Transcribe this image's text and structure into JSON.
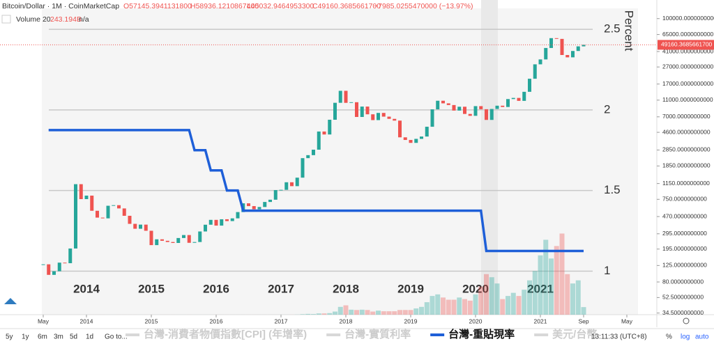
{
  "header": {
    "symbol": "Bitcoin/Dollar · 1M · CoinMarketCap",
    "open": "O57145.3941131800",
    "high": "H58936.1210867400",
    "low": "L45032.9464953300",
    "close": "C49160.3685661700",
    "change": "−7985.0255470000 (−13.97%)",
    "volume_name": "Volume 20",
    "volume_value": "243.194B",
    "volume_ma": "n/a",
    "last_price": "49160.3685661700"
  },
  "chart_data": {
    "type": "candlestick",
    "log_y": true,
    "up_color": "#26a69a",
    "down_color": "#ef5350",
    "rate_color": "#1e5fd8",
    "x": [
      "2013-05",
      "2013-06",
      "2013-07",
      "2013-08",
      "2013-09",
      "2013-10",
      "2013-11",
      "2013-12",
      "2014-01",
      "2014-02",
      "2014-03",
      "2014-04",
      "2014-05",
      "2014-06",
      "2014-07",
      "2014-08",
      "2014-09",
      "2014-10",
      "2014-11",
      "2014-12",
      "2015-01",
      "2015-02",
      "2015-03",
      "2015-04",
      "2015-05",
      "2015-06",
      "2015-07",
      "2015-08",
      "2015-09",
      "2015-10",
      "2015-11",
      "2015-12",
      "2016-01",
      "2016-02",
      "2016-03",
      "2016-04",
      "2016-05",
      "2016-06",
      "2016-07",
      "2016-08",
      "2016-09",
      "2016-10",
      "2016-11",
      "2016-12",
      "2017-01",
      "2017-02",
      "2017-03",
      "2017-04",
      "2017-05",
      "2017-06",
      "2017-07",
      "2017-08",
      "2017-09",
      "2017-10",
      "2017-11",
      "2017-12",
      "2018-01",
      "2018-02",
      "2018-03",
      "2018-04",
      "2018-05",
      "2018-06",
      "2018-07",
      "2018-08",
      "2018-09",
      "2018-10",
      "2018-11",
      "2018-12",
      "2019-01",
      "2019-02",
      "2019-03",
      "2019-04",
      "2019-05",
      "2019-06",
      "2019-07",
      "2019-08",
      "2019-09",
      "2019-10",
      "2019-11",
      "2019-12",
      "2020-01",
      "2020-02",
      "2020-03",
      "2020-04",
      "2020-05",
      "2020-06",
      "2020-07",
      "2020-08",
      "2020-09",
      "2020-10",
      "2020-11",
      "2020-12",
      "2021-01",
      "2021-02",
      "2021-03",
      "2021-04",
      "2021-05",
      "2021-06",
      "2021-07",
      "2021-08",
      "2021-09"
    ],
    "close": [
      129,
      97,
      107,
      135,
      133,
      198,
      1130,
      754,
      829,
      550,
      457,
      448,
      630,
      640,
      586,
      480,
      386,
      338,
      378,
      320,
      217,
      254,
      244,
      236,
      230,
      263,
      285,
      231,
      236,
      314,
      377,
      430,
      368,
      437,
      416,
      448,
      531,
      673,
      624,
      573,
      609,
      698,
      742,
      963,
      970,
      1190,
      1071,
      1348,
      2286,
      2480,
      2875,
      4703,
      4338,
      6468,
      10233,
      14156,
      10221,
      10397,
      6973,
      9240,
      7494,
      6404,
      7780,
      7037,
      6625,
      6317,
      4017,
      3742,
      3457,
      3854,
      4105,
      5350,
      8574,
      10817,
      10085,
      9630,
      8293,
      9199,
      7569,
      7193,
      9350,
      8599,
      6438,
      8658,
      9461,
      9137,
      11323,
      11680,
      10784,
      13781,
      19625,
      29001,
      33114,
      45137,
      58918,
      57750,
      37332,
      35041,
      41626,
      47166,
      49160.36856617
    ],
    "volume": [
      0.1,
      0.1,
      0.1,
      0.1,
      0.1,
      0.1,
      0.1,
      0.1,
      0.2,
      0.2,
      0.2,
      0.2,
      0.2,
      0.2,
      0.2,
      0.2,
      0.2,
      0.2,
      0.2,
      0.2,
      0.2,
      0.2,
      0.2,
      0.2,
      0.2,
      0.2,
      0.2,
      0.2,
      0.2,
      0.2,
      0.2,
      0.2,
      0.3,
      0.3,
      0.3,
      0.3,
      0.3,
      0.3,
      0.3,
      0.3,
      0.3,
      0.3,
      0.3,
      0.3,
      1,
      1,
      2,
      4,
      15,
      25,
      20,
      40,
      40,
      50,
      100,
      250,
      300,
      160,
      150,
      160,
      150,
      100,
      130,
      110,
      110,
      110,
      150,
      150,
      150,
      200,
      250,
      400,
      600,
      650,
      550,
      480,
      480,
      550,
      500,
      450,
      650,
      900,
      1300,
      1200,
      1000,
      500,
      600,
      700,
      600,
      800,
      1100,
      1400,
      1900,
      2400,
      1800,
      2200,
      2600,
      1300,
      1000,
      1100,
      243.194
    ],
    "rate": [
      null,
      1.875,
      1.875,
      1.875,
      1.875,
      1.875,
      1.875,
      1.875,
      1.875,
      1.875,
      1.875,
      1.875,
      1.875,
      1.875,
      1.875,
      1.875,
      1.875,
      1.875,
      1.875,
      1.875,
      1.875,
      1.875,
      1.875,
      1.875,
      1.875,
      1.875,
      1.875,
      1.875,
      1.75,
      1.75,
      1.75,
      1.625,
      1.625,
      1.625,
      1.5,
      1.5,
      1.5,
      1.375,
      1.375,
      1.375,
      1.375,
      1.375,
      1.375,
      1.375,
      1.375,
      1.375,
      1.375,
      1.375,
      1.375,
      1.375,
      1.375,
      1.375,
      1.375,
      1.375,
      1.375,
      1.375,
      1.375,
      1.375,
      1.375,
      1.375,
      1.375,
      1.375,
      1.375,
      1.375,
      1.375,
      1.375,
      1.375,
      1.375,
      1.375,
      1.375,
      1.375,
      1.375,
      1.375,
      1.375,
      1.375,
      1.375,
      1.375,
      1.375,
      1.375,
      1.375,
      1.375,
      1.375,
      1.125,
      1.125,
      1.125,
      1.125,
      1.125,
      1.125,
      1.125,
      1.125,
      1.125,
      1.125,
      1.125,
      1.125,
      1.125,
      1.125,
      1.125,
      1.125,
      1.125,
      1.125,
      1.125
    ],
    "ylim": [
      33,
      132000
    ],
    "yticks": [
      {
        "value": 100000,
        "label": "100000.0000000000"
      },
      {
        "value": 65000,
        "label": "65000.0000000000"
      },
      {
        "value": 41000,
        "label": "41000.0000000000"
      },
      {
        "value": 27000,
        "label": "27000.0000000000"
      },
      {
        "value": 17000,
        "label": "17000.0000000000"
      },
      {
        "value": 11000,
        "label": "11000.0000000000"
      },
      {
        "value": 7000,
        "label": "7000.0000000000"
      },
      {
        "value": 4600,
        "label": "4600.0000000000"
      },
      {
        "value": 2850,
        "label": "2850.0000000000"
      },
      {
        "value": 1850,
        "label": "1850.0000000000"
      },
      {
        "value": 1150,
        "label": "1150.0000000000"
      },
      {
        "value": 750,
        "label": "750.0000000000"
      },
      {
        "value": 470,
        "label": "470.0000000000"
      },
      {
        "value": 295,
        "label": "295.0000000000"
      },
      {
        "value": 195,
        "label": "195.0000000000"
      },
      {
        "value": 125,
        "label": "125.0000000000"
      },
      {
        "value": 80,
        "label": "80.0000000000"
      },
      {
        "value": 52.5,
        "label": "52.5000000000"
      },
      {
        "value": 34.5,
        "label": "34.5000000000"
      }
    ],
    "volume_ylim": [
      0,
      2900
    ],
    "y2lim": [
      0.73,
      2.63
    ],
    "y2ticks": [
      1,
      1.5,
      2,
      2.5
    ],
    "y2_label": "Percent",
    "xticks": [
      {
        "value": "2013-05",
        "label": "May"
      },
      {
        "value": "2014-01",
        "label": "2014"
      },
      {
        "value": "2015-01",
        "label": "2015"
      },
      {
        "value": "2016-01",
        "label": "2016"
      },
      {
        "value": "2017-01",
        "label": "2017"
      },
      {
        "value": "2018-01",
        "label": "2018"
      },
      {
        "value": "2019-01",
        "label": "2019"
      },
      {
        "value": "2020-01",
        "label": "2020"
      },
      {
        "value": "2021-01",
        "label": "2021"
      },
      {
        "value": "2021-09",
        "label": "Sep"
      },
      {
        "value": "2022-05",
        "label": "May"
      }
    ],
    "overlay_xticks": [
      {
        "value": "2014-01",
        "label": "2014"
      },
      {
        "value": "2015-01",
        "label": "2015"
      },
      {
        "value": "2016-01",
        "label": "2016"
      },
      {
        "value": "2017-01",
        "label": "2017"
      },
      {
        "value": "2018-01",
        "label": "2018"
      },
      {
        "value": "2019-01",
        "label": "2019"
      },
      {
        "value": "2020-01",
        "label": "2020"
      },
      {
        "value": "2021-01",
        "label": "2021"
      }
    ],
    "legend": [
      {
        "name": "台灣-消費者物價指數[CPI] (年增率)",
        "color": "#d8d8d8"
      },
      {
        "name": "台灣-實質利率",
        "color": "#d8d8d8"
      },
      {
        "name": "台灣-重貼現率",
        "color": "#1e5fd8"
      },
      {
        "name": "美元/台幣",
        "color": "#d8d8d8"
      }
    ]
  },
  "toolbar": {
    "ranges": [
      "5y",
      "1y",
      "6m",
      "3m",
      "5d",
      "1d"
    ],
    "goto": "Go to...",
    "time": "13:11:33 (UTC+8)",
    "options": [
      "%",
      "log",
      "auto"
    ]
  }
}
